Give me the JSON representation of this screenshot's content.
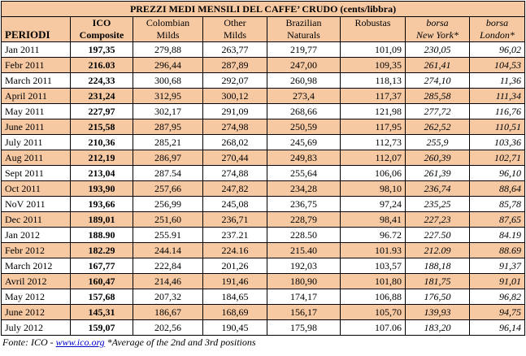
{
  "title": "PREZZI MEDI MENSILI DEL CAFFE’ CRUDO (cents/libbra)",
  "headers": {
    "periodi": "PERIODI",
    "ico": [
      "ICO",
      "Composite"
    ],
    "colombian": [
      "Colombian",
      "Milds"
    ],
    "other": [
      "Other",
      "Milds"
    ],
    "brazilian": [
      "Brazilian",
      "Naturals"
    ],
    "robustas": "Robustas",
    "borsa_ny": [
      "borsa",
      "New York*"
    ],
    "borsa_london": [
      "borsa",
      "London*"
    ]
  },
  "rows": [
    [
      "Jan 2011",
      "197,35",
      "279,88",
      "263,77",
      "219,77",
      "101,09",
      "230,05",
      "96,02"
    ],
    [
      "Febr 2011",
      "216.03",
      "296,44",
      "287,89",
      "247,00",
      "109,35",
      "261,41",
      "104,53"
    ],
    [
      "March 2011",
      "224,33",
      "300,68",
      "292,07",
      "260,98",
      "118,13",
      "274,10",
      "11,36"
    ],
    [
      "April 2011",
      "231,24",
      "312,95",
      "300,12",
      "273,4",
      "117,37",
      "285,58",
      "111,34"
    ],
    [
      "May 2011",
      "227,97",
      "302,17",
      "291,09",
      "268,66",
      "121,98",
      "277,72",
      "116,76"
    ],
    [
      "June 2011",
      "215,58",
      "287,95",
      "274,98",
      "250,59",
      "117,95",
      "262,52",
      "110,51"
    ],
    [
      "July 2011",
      "210,36",
      "285,21",
      "268,02",
      "245,69",
      "112,73",
      "255,9",
      "103,36"
    ],
    [
      "Aug 2011",
      "212,19",
      "286,97",
      "270,44",
      "249,83",
      "112,07",
      "260,39",
      "102,71"
    ],
    [
      "Sept 2011",
      "213,04",
      "287.54",
      "274,88",
      "255,64",
      "106,06",
      "261,39",
      "96,10"
    ],
    [
      "Oct 2011",
      "193,90",
      "257,66",
      "247,82",
      "234,28",
      "98,10",
      "236,74",
      "88,64"
    ],
    [
      "NoV 2011",
      "193,66",
      "256,99",
      "245,08",
      "236,75",
      "97,24",
      "235,25",
      "85,78"
    ],
    [
      "Dec 2011",
      "189,01",
      "251,60",
      "236,71",
      "228,79",
      "98,41",
      "227,23",
      "87,65"
    ],
    [
      "Jan 2012",
      "188.90",
      "255.91",
      "237.21",
      "228.50",
      "96.72",
      "227.50",
      "84.19"
    ],
    [
      "Febr 2012",
      "182.29",
      "244.14",
      "224.16",
      "215.40",
      "101.93",
      "212.09",
      "88.69"
    ],
    [
      "March 2012",
      "167,77",
      "222,84",
      "201,26",
      "192,03",
      "103,57",
      "188,18",
      "91,37"
    ],
    [
      "Avril 2012",
      "160,47",
      "214,46",
      "191,46",
      "180,90",
      "101,80",
      "181,75",
      "91,01"
    ],
    [
      "May 2012",
      "157,68",
      "207,32",
      "184,65",
      "174,17",
      "106,88",
      "176,50",
      "96,82"
    ],
    [
      "June 2012",
      "145,31",
      "186,67",
      "168,69",
      "156,17",
      "105,70",
      "139,93",
      "94,75"
    ],
    [
      "July 2012",
      "159,07",
      "202,56",
      "190,45",
      "175,98",
      "107.06",
      "183,20",
      "96,14"
    ]
  ],
  "footer": {
    "prefix": "Fonte: ICO - ",
    "link": "www.ico.org",
    "note": " *Average of the 2nd and 3rd positions"
  },
  "colors": {
    "highlight": "#f6c9a2",
    "link": "#0000cc"
  }
}
